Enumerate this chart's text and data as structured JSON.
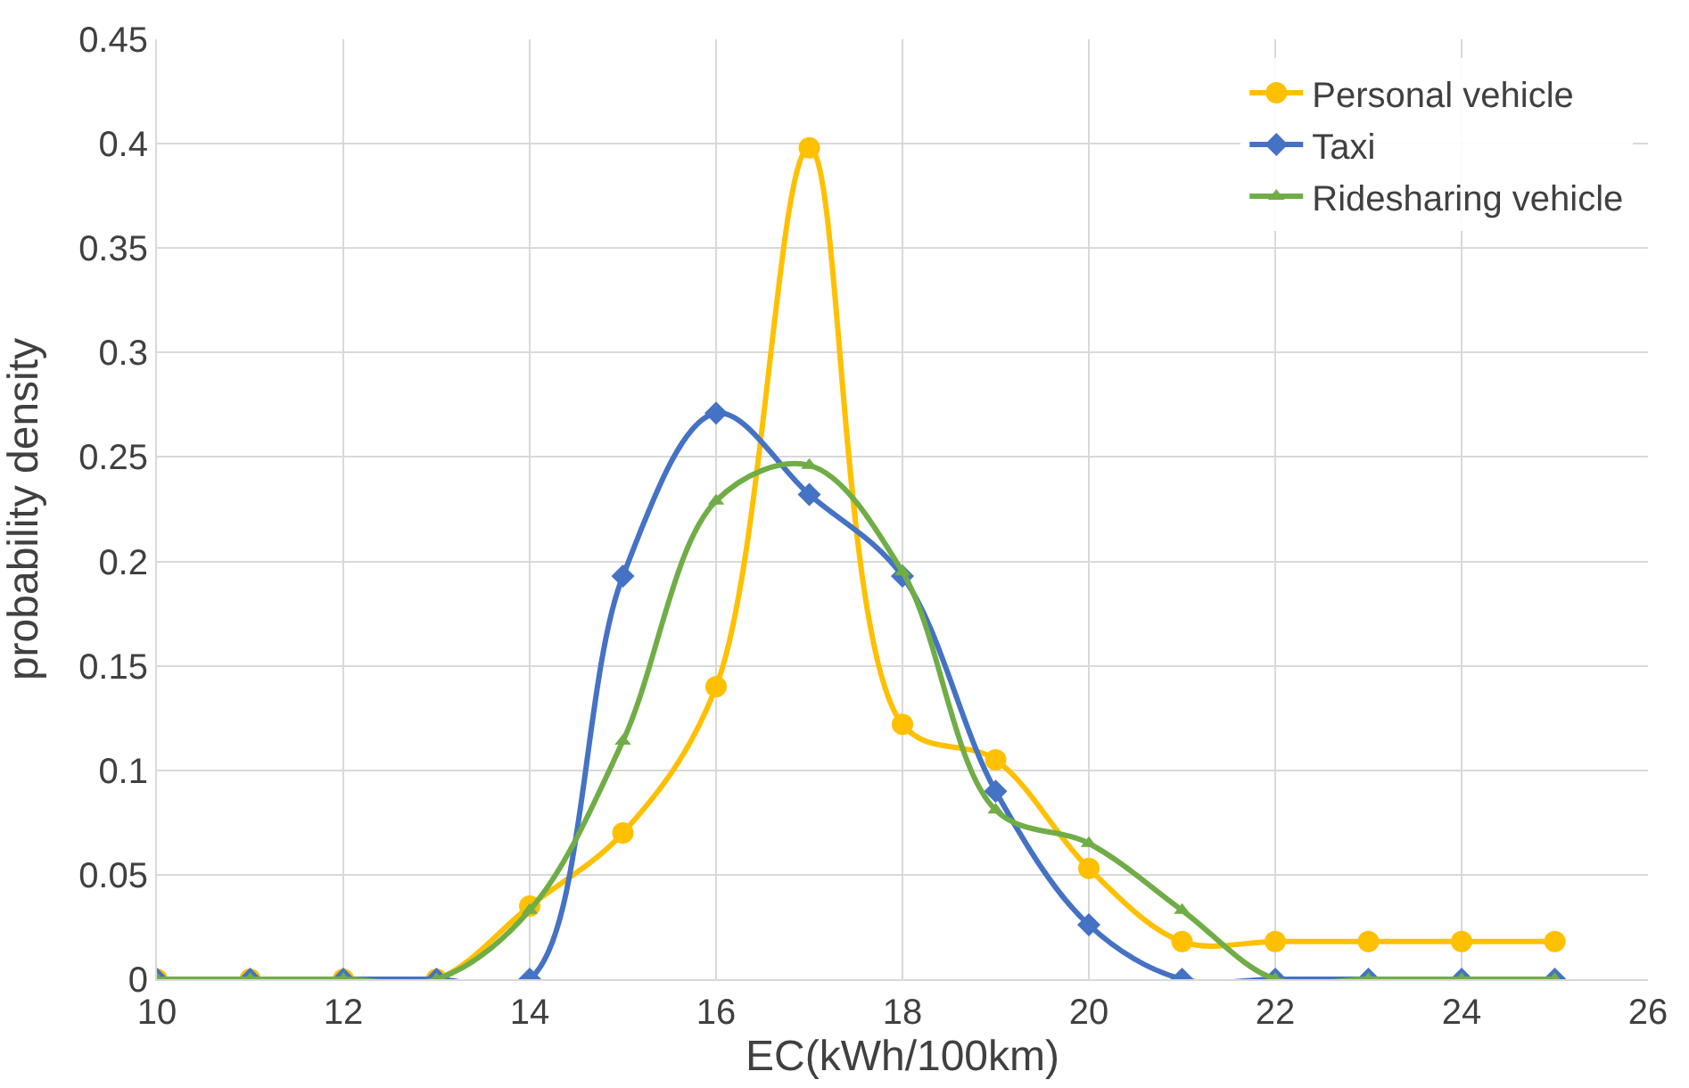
{
  "chart_data": {
    "type": "line",
    "xlabel": "EC(kWh/100km)",
    "ylabel": "probability density",
    "x": [
      10,
      11,
      12,
      13,
      14,
      15,
      16,
      17,
      18,
      19,
      20,
      21,
      22,
      23,
      24,
      25
    ],
    "series": [
      {
        "name": "Personal vehicle",
        "color": "#ffc000",
        "marker": "circle",
        "values": [
          0,
          0,
          0,
          0,
          0.035,
          0.07,
          0.14,
          0.398,
          0.122,
          0.105,
          0.053,
          0.018,
          0.018,
          0.018,
          0.018,
          0.018
        ]
      },
      {
        "name": "Taxi",
        "color": "#4472c4",
        "marker": "diamond",
        "values": [
          0,
          0,
          0,
          0,
          0,
          0.193,
          0.271,
          0.232,
          0.193,
          0.09,
          0.026,
          0,
          0,
          0,
          0,
          0
        ]
      },
      {
        "name": "Ridesharing vehicle",
        "color": "#70ad47",
        "marker": "triangle",
        "values": [
          0,
          0,
          0,
          0,
          0.033,
          0.114,
          0.229,
          0.246,
          0.195,
          0.081,
          0.065,
          0.033,
          0,
          0,
          0,
          0
        ]
      }
    ],
    "xlim": [
      10,
      26
    ],
    "xticks": [
      10,
      12,
      14,
      16,
      18,
      20,
      22,
      24,
      26
    ],
    "ylim": [
      0,
      0.45
    ],
    "yticks": [
      0,
      0.05,
      0.1,
      0.15,
      0.2,
      0.25,
      0.3,
      0.35,
      0.4,
      0.45
    ],
    "grid": true,
    "legend": "top right",
    "line_style": "solid"
  }
}
